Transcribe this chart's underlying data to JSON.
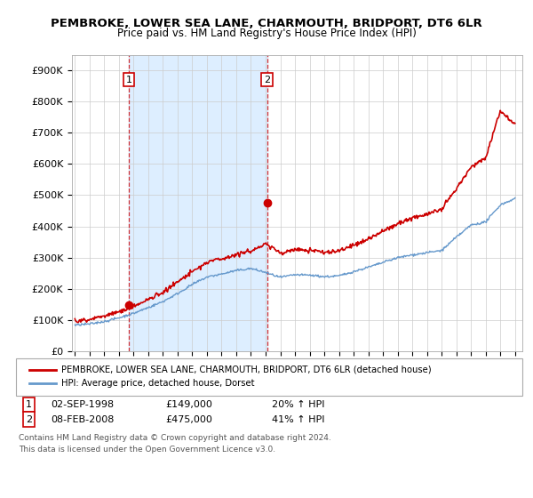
{
  "title": "PEMBROKE, LOWER SEA LANE, CHARMOUTH, BRIDPORT, DT6 6LR",
  "subtitle": "Price paid vs. HM Land Registry's House Price Index (HPI)",
  "yticks": [
    0,
    100000,
    200000,
    300000,
    400000,
    500000,
    600000,
    700000,
    800000,
    900000
  ],
  "ytick_labels": [
    "£0",
    "£100K",
    "£200K",
    "£300K",
    "£400K",
    "£500K",
    "£600K",
    "£700K",
    "£800K",
    "£900K"
  ],
  "ylim": [
    0,
    950000
  ],
  "sale1_date": 1998.67,
  "sale1_price": 149000,
  "sale2_date": 2008.1,
  "sale2_price": 475000,
  "legend_line1": "PEMBROKE, LOWER SEA LANE, CHARMOUTH, BRIDPORT, DT6 6LR (detached house)",
  "legend_line2": "HPI: Average price, detached house, Dorset",
  "table_row1": [
    "1",
    "02-SEP-1998",
    "£149,000",
    "20% ↑ HPI"
  ],
  "table_row2": [
    "2",
    "08-FEB-2008",
    "£475,000",
    "41% ↑ HPI"
  ],
  "footnote1": "Contains HM Land Registry data © Crown copyright and database right 2024.",
  "footnote2": "This data is licensed under the Open Government Licence v3.0.",
  "red_color": "#cc0000",
  "blue_color": "#6699cc",
  "shade_color": "#ddeeff",
  "background_color": "#ffffff",
  "grid_color": "#cccccc"
}
